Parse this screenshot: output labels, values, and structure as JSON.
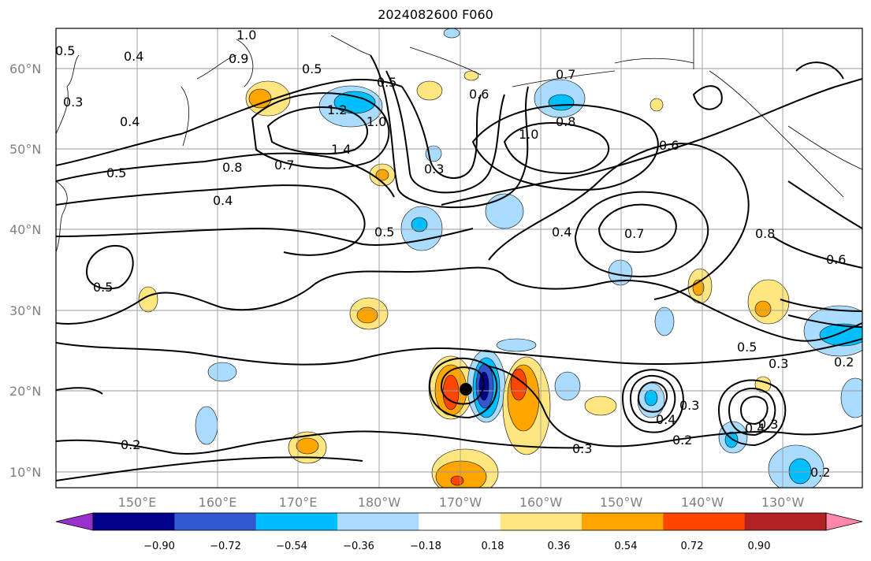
{
  "title": "2024082600 F060",
  "lat_labels": [
    "60°N",
    "50°N",
    "40°N",
    "30°N",
    "20°N",
    "10°N"
  ],
  "lon_labels": [
    "150°E",
    "160°E",
    "170°E",
    "180°W",
    "170°W",
    "160°W",
    "150°W",
    "140°W",
    "130°W"
  ],
  "colorbar": {
    "ticks": [
      "−0.90",
      "−0.72",
      "−0.54",
      "−0.36",
      "−0.18",
      "0.18",
      "0.36",
      "0.54",
      "0.72",
      "0.90"
    ],
    "colors": [
      "#9932cc",
      "#00008b",
      "#3158cf",
      "#00bfff",
      "#aadcff",
      "#ffffff",
      "#ffe680",
      "#ffa500",
      "#ff4500",
      "#b22222",
      "#ff88aa"
    ]
  },
  "contour_labels": [
    "1.0",
    "0.4",
    "0.5",
    "0.3",
    "0.9",
    "0.5",
    "0.4",
    "0.5",
    "1.2",
    "1.0",
    "1.4",
    "0.5",
    "0.8",
    "0.7",
    "0.4",
    "0.3",
    "0.6",
    "0.7",
    "0.8",
    "1.0",
    "0.6",
    "0.5",
    "0.4",
    "0.7",
    "0.8",
    "0.6",
    "0.5",
    "0.5",
    "0.3",
    "0.2",
    "0.4",
    "0.3",
    "0.2",
    "0.3",
    "0.4",
    "0.3",
    "0.2",
    "0.2"
  ],
  "storm_marker": "tropical-cyclone-position"
}
